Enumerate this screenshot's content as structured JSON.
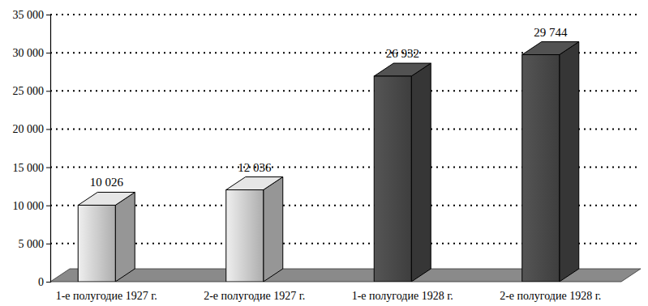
{
  "chart_data": {
    "type": "bar",
    "categories": [
      "1-е полугодие 1927 г.",
      "2-е полугодие 1927 г.",
      "1-е полугодие 1928 г.",
      "2-е полугодие 1928 г."
    ],
    "values": [
      10026,
      12036,
      26932,
      29744
    ],
    "value_labels": [
      "10 026",
      "12 036",
      "26 932",
      "29 744"
    ],
    "colors": [
      "#cfcfcf",
      "#cfcfcf",
      "#4a4a4a",
      "#4a4a4a"
    ],
    "ylim": [
      0,
      35000
    ],
    "yticks": [
      0,
      {
        "value": 5000,
        "label": "5 000"
      },
      {
        "value": 10000,
        "label": "10 000"
      },
      {
        "value": 15000,
        "label": "15 000"
      },
      {
        "value": 20000,
        "label": "20 000"
      },
      {
        "value": 25000,
        "label": "25 000"
      },
      {
        "value": 30000,
        "label": "30 000"
      },
      {
        "value": 35000,
        "label": "35 000"
      }
    ],
    "grid": true,
    "data_labels": true
  }
}
